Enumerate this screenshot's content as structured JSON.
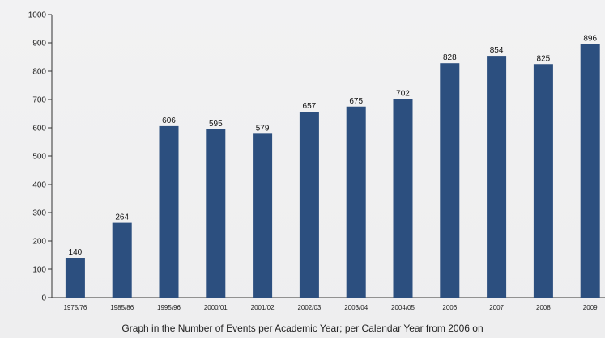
{
  "chart_data": {
    "type": "bar",
    "title": "",
    "xlabel": "",
    "ylabel": "",
    "caption": "Graph in the Number of Events per Academic Year; per Calendar Year from 2006 on",
    "categories": [
      "1975/76",
      "1985/86",
      "1995/96",
      "2000/01",
      "2001/02",
      "2002/03",
      "2003/04",
      "2004/05",
      "2006",
      "2007",
      "2008",
      "2009"
    ],
    "values": [
      140,
      264,
      606,
      595,
      579,
      657,
      675,
      702,
      828,
      854,
      825,
      896
    ],
    "ylim": [
      0,
      1000
    ],
    "yticks": [
      0,
      100,
      200,
      300,
      400,
      500,
      600,
      700,
      800,
      900,
      1000
    ],
    "grid": false,
    "bar_color": "#2c4f7f",
    "axis_color": "#333333"
  }
}
